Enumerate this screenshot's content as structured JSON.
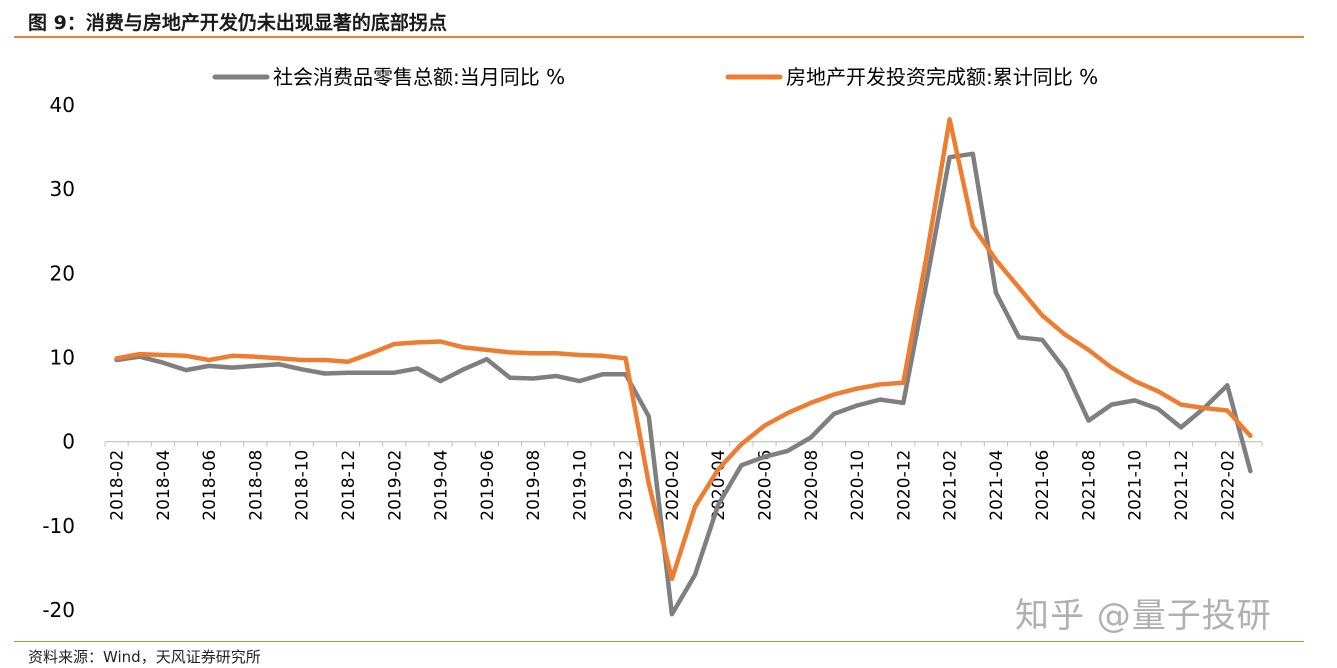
{
  "figure": {
    "title": "图 9：消费与房地产开发仍未出现显著的底部拐点",
    "source": "资料来源：Wind，天风证券研究所",
    "watermark": "知乎 @量子投研"
  },
  "chart_data": {
    "type": "line",
    "title": "",
    "xlabel": "",
    "ylabel": "",
    "ylim": [
      -20,
      40
    ],
    "yticks": [
      -20,
      -10,
      0,
      10,
      20,
      30,
      40
    ],
    "legend_position": "top",
    "grid": false,
    "x": [
      "2018-02",
      "2018-03",
      "2018-04",
      "2018-05",
      "2018-06",
      "2018-07",
      "2018-08",
      "2018-09",
      "2018-10",
      "2018-11",
      "2018-12",
      "2019-01",
      "2019-02",
      "2019-03",
      "2019-04",
      "2019-05",
      "2019-06",
      "2019-07",
      "2019-08",
      "2019-09",
      "2019-10",
      "2019-11",
      "2019-12",
      "2020-01",
      "2020-02",
      "2020-03",
      "2020-04",
      "2020-05",
      "2020-06",
      "2020-07",
      "2020-08",
      "2020-09",
      "2020-10",
      "2020-11",
      "2020-12",
      "2021-01",
      "2021-02",
      "2021-03",
      "2021-04",
      "2021-05",
      "2021-06",
      "2021-07",
      "2021-08",
      "2021-09",
      "2021-10",
      "2021-11",
      "2021-12",
      "2022-01",
      "2022-02",
      "2022-03"
    ],
    "x_tick_labels": [
      "2018-02",
      "2018-04",
      "2018-06",
      "2018-08",
      "2018-10",
      "2018-12",
      "2019-02",
      "2019-04",
      "2019-06",
      "2019-08",
      "2019-10",
      "2019-12",
      "2020-02",
      "2020-04",
      "2020-06",
      "2020-08",
      "2020-10",
      "2020-12",
      "2021-02",
      "2021-04",
      "2021-06",
      "2021-08",
      "2021-10",
      "2021-12",
      "2022-02"
    ],
    "series": [
      {
        "name": "社会消费品零售总额:当月同比 %",
        "color": "#7f7f7f",
        "values": [
          9.7,
          10.1,
          9.4,
          8.5,
          9.0,
          8.8,
          9.0,
          9.2,
          8.6,
          8.1,
          8.2,
          8.2,
          8.2,
          8.7,
          7.2,
          8.6,
          9.8,
          7.6,
          7.5,
          7.8,
          7.2,
          8.0,
          8.0,
          3.0,
          -20.5,
          -15.8,
          -7.5,
          -2.8,
          -1.8,
          -1.1,
          0.5,
          3.3,
          4.3,
          5.0,
          4.6,
          19.0,
          33.8,
          34.2,
          17.7,
          12.4,
          12.1,
          8.5,
          2.5,
          4.4,
          4.9,
          3.9,
          1.7,
          4.0,
          6.7,
          -3.5
        ]
      },
      {
        "name": "房地产开发投资完成额:累计同比 %",
        "color": "#ed7d31",
        "values": [
          9.9,
          10.4,
          10.3,
          10.2,
          9.7,
          10.2,
          10.1,
          9.9,
          9.7,
          9.7,
          9.5,
          10.5,
          11.6,
          11.8,
          11.9,
          11.2,
          10.9,
          10.6,
          10.5,
          10.5,
          10.3,
          10.2,
          9.9,
          -5.0,
          -16.3,
          -7.7,
          -3.3,
          -0.3,
          1.9,
          3.4,
          4.6,
          5.6,
          6.3,
          6.8,
          7.0,
          22.0,
          38.3,
          25.6,
          21.6,
          18.3,
          15.0,
          12.7,
          10.9,
          8.8,
          7.2,
          6.0,
          4.4,
          4.0,
          3.7,
          0.7
        ]
      }
    ]
  }
}
